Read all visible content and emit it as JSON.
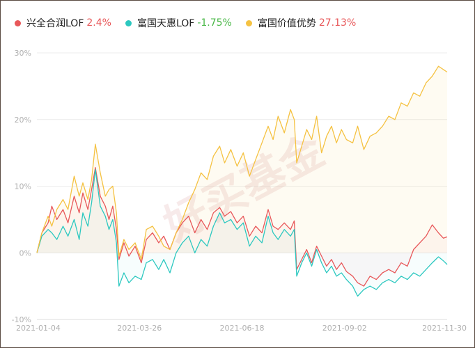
{
  "chart_data": {
    "type": "line",
    "ylim": [
      -10,
      30
    ],
    "y_ticks": [
      "30%",
      "20%",
      "10%",
      "0%",
      "-10%"
    ],
    "y_tick_values": [
      30,
      20,
      10,
      0,
      -10
    ],
    "x_tick_labels": [
      "2021-01-04",
      "2021-03-26",
      "2021-06-18",
      "2021-09-02",
      "2021-11-30"
    ],
    "x_range": [
      "2021-01-04",
      "2021-11-30"
    ],
    "grid": true,
    "legend_position": "top-left",
    "watermark": "好买基金",
    "series": [
      {
        "name": "兴全合润LOF",
        "value_label": "2.4%",
        "color": "#e8585a",
        "value_color": "#e8585a",
        "points": [
          [
            "2021-01-04",
            0
          ],
          [
            "2021-01-08",
            3.0
          ],
          [
            "2021-01-13",
            4.5
          ],
          [
            "2021-01-16",
            7.0
          ],
          [
            "2021-01-20",
            5.0
          ],
          [
            "2021-01-25",
            6.5
          ],
          [
            "2021-01-29",
            4.5
          ],
          [
            "2021-02-03",
            8.5
          ],
          [
            "2021-02-07",
            6.0
          ],
          [
            "2021-02-10",
            9.0
          ],
          [
            "2021-02-14",
            6.5
          ],
          [
            "2021-02-17",
            9.5
          ],
          [
            "2021-02-20",
            12.8
          ],
          [
            "2021-02-24",
            8.5
          ],
          [
            "2021-02-28",
            7.0
          ],
          [
            "2021-03-03",
            5.0
          ],
          [
            "2021-03-06",
            7.0
          ],
          [
            "2021-03-09",
            3.5
          ],
          [
            "2021-03-11",
            -1.0
          ],
          [
            "2021-03-15",
            1.5
          ],
          [
            "2021-03-19",
            -0.5
          ],
          [
            "2021-03-24",
            1.0
          ],
          [
            "2021-03-29",
            -1.5
          ],
          [
            "2021-04-02",
            2.0
          ],
          [
            "2021-04-07",
            3.0
          ],
          [
            "2021-04-12",
            1.5
          ],
          [
            "2021-04-16",
            2.5
          ],
          [
            "2021-04-21",
            0.5
          ],
          [
            "2021-04-26",
            3.0
          ],
          [
            "2021-05-01",
            4.5
          ],
          [
            "2021-05-06",
            5.5
          ],
          [
            "2021-05-11",
            3.0
          ],
          [
            "2021-05-16",
            5.0
          ],
          [
            "2021-05-21",
            3.5
          ],
          [
            "2021-05-26",
            6.0
          ],
          [
            "2021-05-31",
            6.8
          ],
          [
            "2021-06-04",
            5.5
          ],
          [
            "2021-06-09",
            6.2
          ],
          [
            "2021-06-14",
            4.5
          ],
          [
            "2021-06-19",
            5.5
          ],
          [
            "2021-06-24",
            2.5
          ],
          [
            "2021-06-29",
            4.0
          ],
          [
            "2021-07-04",
            3.0
          ],
          [
            "2021-07-09",
            6.5
          ],
          [
            "2021-07-13",
            4.0
          ],
          [
            "2021-07-17",
            3.5
          ],
          [
            "2021-07-22",
            4.5
          ],
          [
            "2021-07-27",
            3.5
          ],
          [
            "2021-07-30",
            4.8
          ],
          [
            "2021-08-01",
            -2.5
          ],
          [
            "2021-08-05",
            -1.0
          ],
          [
            "2021-08-09",
            0.5
          ],
          [
            "2021-08-13",
            -1.5
          ],
          [
            "2021-08-17",
            1.0
          ],
          [
            "2021-08-21",
            -0.5
          ],
          [
            "2021-08-25",
            -2.0
          ],
          [
            "2021-08-29",
            -1.0
          ],
          [
            "2021-09-02",
            -2.5
          ],
          [
            "2021-09-06",
            -1.5
          ],
          [
            "2021-09-10",
            -2.8
          ],
          [
            "2021-09-15",
            -3.5
          ],
          [
            "2021-09-19",
            -4.5
          ],
          [
            "2021-09-24",
            -5.0
          ],
          [
            "2021-09-29",
            -3.5
          ],
          [
            "2021-10-04",
            -4.0
          ],
          [
            "2021-10-09",
            -3.0
          ],
          [
            "2021-10-14",
            -2.5
          ],
          [
            "2021-10-19",
            -3.0
          ],
          [
            "2021-10-24",
            -1.5
          ],
          [
            "2021-10-29",
            -2.0
          ],
          [
            "2021-11-03",
            0.5
          ],
          [
            "2021-11-08",
            1.5
          ],
          [
            "2021-11-13",
            2.5
          ],
          [
            "2021-11-18",
            4.2
          ],
          [
            "2021-11-23",
            3.0
          ],
          [
            "2021-11-27",
            2.2
          ],
          [
            "2021-11-30",
            2.4
          ]
        ]
      },
      {
        "name": "富国天惠LOF",
        "value_label": "-1.75%",
        "color": "#2cc8c0",
        "value_color": "#4ab848",
        "points": [
          [
            "2021-01-04",
            0
          ],
          [
            "2021-01-08",
            2.5
          ],
          [
            "2021-01-13",
            3.5
          ],
          [
            "2021-01-16",
            3.0
          ],
          [
            "2021-01-20",
            2.0
          ],
          [
            "2021-01-25",
            4.0
          ],
          [
            "2021-01-29",
            2.5
          ],
          [
            "2021-02-03",
            5.0
          ],
          [
            "2021-02-07",
            2.0
          ],
          [
            "2021-02-10",
            6.0
          ],
          [
            "2021-02-14",
            4.0
          ],
          [
            "2021-02-17",
            7.5
          ],
          [
            "2021-02-20",
            12.5
          ],
          [
            "2021-02-24",
            7.0
          ],
          [
            "2021-02-28",
            5.5
          ],
          [
            "2021-03-03",
            3.5
          ],
          [
            "2021-03-06",
            5.0
          ],
          [
            "2021-03-09",
            1.5
          ],
          [
            "2021-03-11",
            -5.0
          ],
          [
            "2021-03-15",
            -3.0
          ],
          [
            "2021-03-19",
            -4.5
          ],
          [
            "2021-03-24",
            -3.5
          ],
          [
            "2021-03-29",
            -4.0
          ],
          [
            "2021-04-02",
            -1.5
          ],
          [
            "2021-04-07",
            -1.0
          ],
          [
            "2021-04-12",
            -2.5
          ],
          [
            "2021-04-16",
            -1.0
          ],
          [
            "2021-04-21",
            -3.0
          ],
          [
            "2021-04-26",
            0.0
          ],
          [
            "2021-05-01",
            1.5
          ],
          [
            "2021-05-06",
            2.5
          ],
          [
            "2021-05-11",
            0.0
          ],
          [
            "2021-05-16",
            2.0
          ],
          [
            "2021-05-21",
            1.0
          ],
          [
            "2021-05-26",
            4.0
          ],
          [
            "2021-05-31",
            6.0
          ],
          [
            "2021-06-04",
            4.5
          ],
          [
            "2021-06-09",
            5.0
          ],
          [
            "2021-06-14",
            3.5
          ],
          [
            "2021-06-19",
            4.5
          ],
          [
            "2021-06-24",
            1.0
          ],
          [
            "2021-06-29",
            2.5
          ],
          [
            "2021-07-04",
            1.5
          ],
          [
            "2021-07-09",
            5.5
          ],
          [
            "2021-07-13",
            3.0
          ],
          [
            "2021-07-17",
            2.0
          ],
          [
            "2021-07-22",
            3.5
          ],
          [
            "2021-07-27",
            2.5
          ],
          [
            "2021-07-30",
            3.5
          ],
          [
            "2021-08-01",
            -3.5
          ],
          [
            "2021-08-05",
            -1.5
          ],
          [
            "2021-08-09",
            0.0
          ],
          [
            "2021-08-13",
            -2.0
          ],
          [
            "2021-08-17",
            0.5
          ],
          [
            "2021-08-21",
            -1.5
          ],
          [
            "2021-08-25",
            -3.0
          ],
          [
            "2021-08-29",
            -2.0
          ],
          [
            "2021-09-02",
            -3.5
          ],
          [
            "2021-09-06",
            -3.0
          ],
          [
            "2021-09-10",
            -4.0
          ],
          [
            "2021-09-15",
            -5.0
          ],
          [
            "2021-09-19",
            -6.5
          ],
          [
            "2021-09-24",
            -5.5
          ],
          [
            "2021-09-29",
            -5.0
          ],
          [
            "2021-10-04",
            -5.5
          ],
          [
            "2021-10-09",
            -4.5
          ],
          [
            "2021-10-14",
            -4.0
          ],
          [
            "2021-10-19",
            -4.5
          ],
          [
            "2021-10-24",
            -3.5
          ],
          [
            "2021-10-29",
            -4.0
          ],
          [
            "2021-11-03",
            -3.0
          ],
          [
            "2021-11-08",
            -3.5
          ],
          [
            "2021-11-13",
            -2.5
          ],
          [
            "2021-11-18",
            -1.5
          ],
          [
            "2021-11-23",
            -0.6
          ],
          [
            "2021-11-27",
            -1.2
          ],
          [
            "2021-11-30",
            -1.75
          ]
        ]
      },
      {
        "name": "富国价值优势",
        "value_label": "27.13%",
        "color": "#f5c242",
        "value_color": "#e8585a",
        "points": [
          [
            "2021-01-04",
            0
          ],
          [
            "2021-01-08",
            3.0
          ],
          [
            "2021-01-13",
            5.5
          ],
          [
            "2021-01-16",
            4.0
          ],
          [
            "2021-01-20",
            6.5
          ],
          [
            "2021-01-25",
            8.0
          ],
          [
            "2021-01-29",
            6.5
          ],
          [
            "2021-02-03",
            11.5
          ],
          [
            "2021-02-07",
            8.5
          ],
          [
            "2021-02-10",
            10.5
          ],
          [
            "2021-02-14",
            8.0
          ],
          [
            "2021-02-17",
            11.0
          ],
          [
            "2021-02-20",
            16.3
          ],
          [
            "2021-02-24",
            12.0
          ],
          [
            "2021-02-28",
            8.5
          ],
          [
            "2021-03-03",
            9.5
          ],
          [
            "2021-03-06",
            10.0
          ],
          [
            "2021-03-09",
            6.0
          ],
          [
            "2021-03-11",
            -0.5
          ],
          [
            "2021-03-15",
            2.0
          ],
          [
            "2021-03-19",
            0.5
          ],
          [
            "2021-03-24",
            1.5
          ],
          [
            "2021-03-29",
            -1.0
          ],
          [
            "2021-04-02",
            3.5
          ],
          [
            "2021-04-07",
            4.0
          ],
          [
            "2021-04-12",
            2.5
          ],
          [
            "2021-04-16",
            1.0
          ],
          [
            "2021-04-21",
            0.5
          ],
          [
            "2021-04-26",
            3.0
          ],
          [
            "2021-05-01",
            5.0
          ],
          [
            "2021-05-06",
            7.5
          ],
          [
            "2021-05-11",
            9.5
          ],
          [
            "2021-05-16",
            12.0
          ],
          [
            "2021-05-21",
            11.0
          ],
          [
            "2021-05-26",
            14.5
          ],
          [
            "2021-05-31",
            16.0
          ],
          [
            "2021-06-04",
            13.5
          ],
          [
            "2021-06-09",
            15.5
          ],
          [
            "2021-06-14",
            13.0
          ],
          [
            "2021-06-19",
            15.0
          ],
          [
            "2021-06-24",
            11.5
          ],
          [
            "2021-06-29",
            14.0
          ],
          [
            "2021-07-04",
            16.5
          ],
          [
            "2021-07-09",
            19.0
          ],
          [
            "2021-07-13",
            17.0
          ],
          [
            "2021-07-17",
            20.5
          ],
          [
            "2021-07-22",
            18.0
          ],
          [
            "2021-07-27",
            21.5
          ],
          [
            "2021-07-30",
            20.0
          ],
          [
            "2021-08-01",
            13.5
          ],
          [
            "2021-08-05",
            16.0
          ],
          [
            "2021-08-09",
            18.5
          ],
          [
            "2021-08-13",
            17.0
          ],
          [
            "2021-08-17",
            20.5
          ],
          [
            "2021-08-21",
            15.0
          ],
          [
            "2021-08-25",
            17.5
          ],
          [
            "2021-08-29",
            19.0
          ],
          [
            "2021-09-02",
            16.5
          ],
          [
            "2021-09-06",
            18.5
          ],
          [
            "2021-09-10",
            17.0
          ],
          [
            "2021-09-15",
            16.5
          ],
          [
            "2021-09-19",
            19.0
          ],
          [
            "2021-09-24",
            15.5
          ],
          [
            "2021-09-29",
            17.5
          ],
          [
            "2021-10-04",
            18.0
          ],
          [
            "2021-10-09",
            19.0
          ],
          [
            "2021-10-14",
            20.5
          ],
          [
            "2021-10-19",
            20.0
          ],
          [
            "2021-10-24",
            22.5
          ],
          [
            "2021-10-29",
            22.0
          ],
          [
            "2021-11-03",
            24.0
          ],
          [
            "2021-11-08",
            23.5
          ],
          [
            "2021-11-13",
            25.5
          ],
          [
            "2021-11-18",
            26.5
          ],
          [
            "2021-11-23",
            28.0
          ],
          [
            "2021-11-27",
            27.5
          ],
          [
            "2021-11-30",
            27.13
          ]
        ]
      }
    ]
  }
}
